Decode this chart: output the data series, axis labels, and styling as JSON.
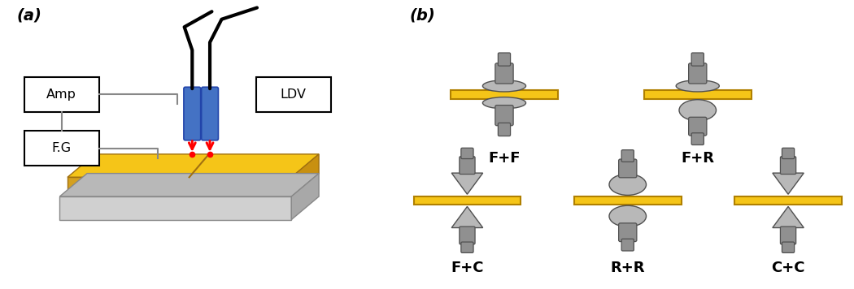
{
  "fig_width": 10.5,
  "fig_height": 3.56,
  "dpi": 100,
  "panel_a_label": "(a)",
  "panel_b_label": "(b)",
  "label_fontsize": 14,
  "amp_label": "Amp",
  "ldv_label": "LDV",
  "fg_label": "F.G",
  "plate_color": "#F5C518",
  "base_color": "#C0C0C0",
  "probe_fill": "#909090",
  "probe_light": "#B8B8B8",
  "probe_dark": "#505050",
  "blue_probe": "#4472C4",
  "blue_dark": "#2244AA",
  "red_color": "#FF0000",
  "label_ff": "F+F",
  "label_fr": "F+R",
  "label_fc": "F+C",
  "label_rr": "R+R",
  "label_cc": "C+C",
  "sublabel_fontsize": 13,
  "conn_color": "#888888"
}
